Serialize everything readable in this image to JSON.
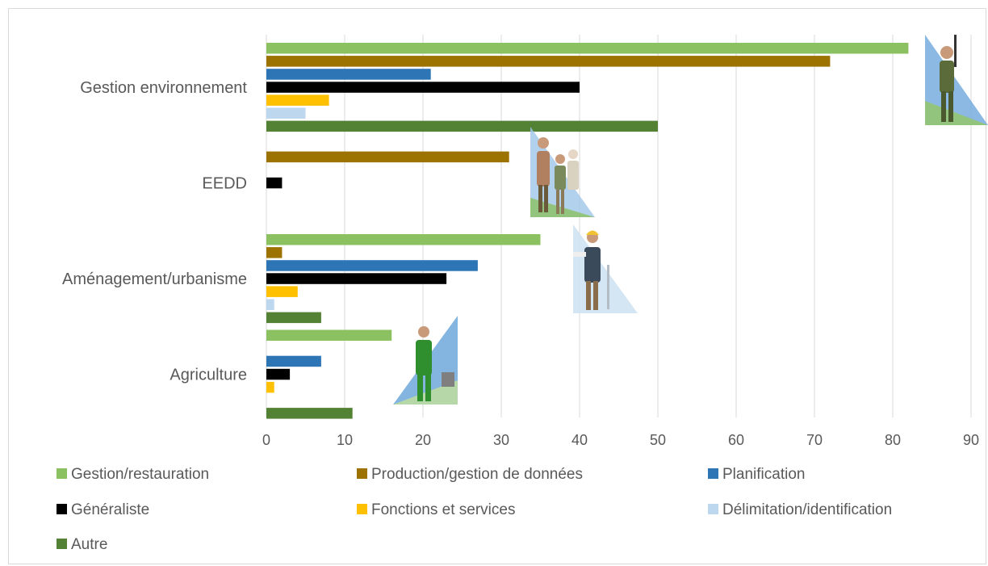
{
  "chart_data": {
    "type": "bar",
    "orientation": "horizontal",
    "categories": [
      "Gestion environnement",
      "EEDD",
      "Aménagement/urbanisme",
      "Agriculture"
    ],
    "xlim": [
      0,
      90
    ],
    "x_ticks": [
      "0",
      "10",
      "20",
      "30",
      "40",
      "50",
      "60",
      "70",
      "80",
      "90"
    ],
    "grid": "vertical",
    "legend_position": "bottom",
    "series": [
      {
        "name": "Gestion/restauration",
        "color": "#8cc162",
        "values": [
          82,
          0,
          35,
          16
        ]
      },
      {
        "name": "Production/gestion de données",
        "color": "#9c7300",
        "values": [
          72,
          31,
          2,
          0
        ]
      },
      {
        "name": "Planification",
        "color": "#2e75b6",
        "values": [
          21,
          0,
          27,
          7
        ]
      },
      {
        "name": "Généraliste",
        "color": "#000000",
        "values": [
          40,
          2,
          23,
          3
        ]
      },
      {
        "name": "Fonctions et services",
        "color": "#ffc000",
        "values": [
          8,
          0,
          4,
          1
        ]
      },
      {
        "name": "Délimitation/identification",
        "color": "#bdd7ee",
        "values": [
          5,
          0,
          1,
          0
        ]
      },
      {
        "name": "Autre",
        "color": "#548235",
        "values": [
          50,
          0,
          7,
          11
        ]
      }
    ],
    "illustrations": [
      "naturalist-icon",
      "family-hikers-icon",
      "engineer-icon",
      "farmer-icon"
    ]
  }
}
